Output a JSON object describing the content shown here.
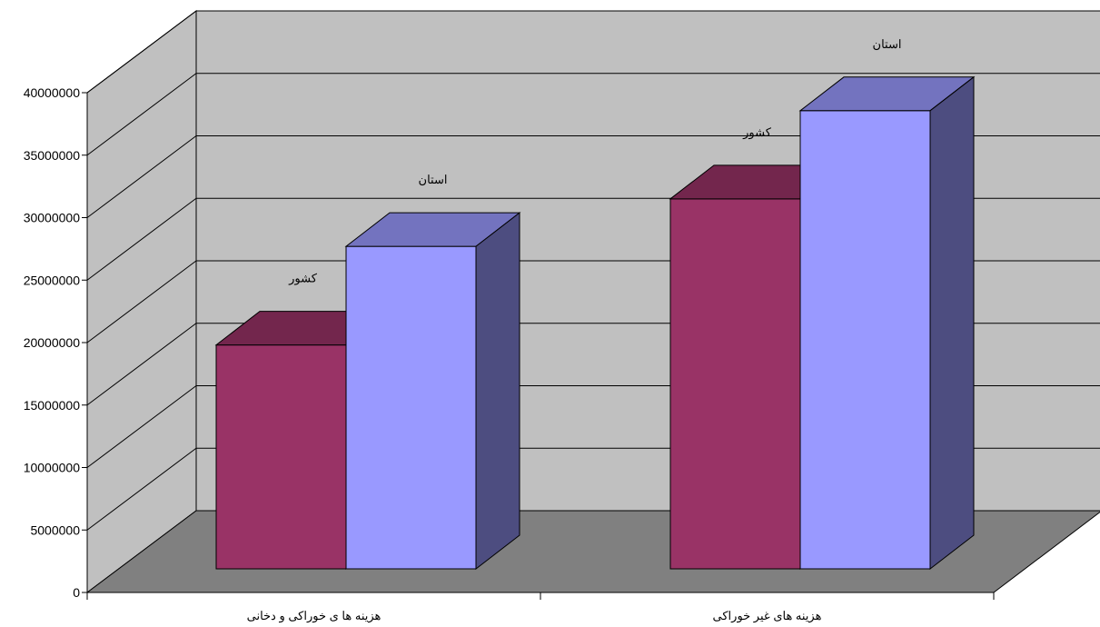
{
  "chart_data": {
    "type": "bar",
    "three_d": true,
    "categories": [
      "هزینه ها ی خوراکی و دخانی",
      "هزینه های غیر خوراکی"
    ],
    "series": [
      {
        "name": "کشور",
        "color": "#993366",
        "values": [
          19300000,
          31900000
        ]
      },
      {
        "name": "استان",
        "color": "#9999FF",
        "values": [
          27800000,
          39500000
        ]
      }
    ],
    "ylim": [
      0,
      40000000
    ],
    "yticks": [
      0,
      5000000,
      10000000,
      15000000,
      20000000,
      25000000,
      30000000,
      35000000,
      40000000
    ],
    "ytick_labels": [
      "0",
      "5000000",
      "10000000",
      "15000000",
      "20000000",
      "25000000",
      "30000000",
      "35000000",
      "40000000"
    ],
    "grid": true,
    "legend": "none",
    "colors": {
      "wall": "#C0C0C0",
      "floor": "#808080"
    }
  }
}
